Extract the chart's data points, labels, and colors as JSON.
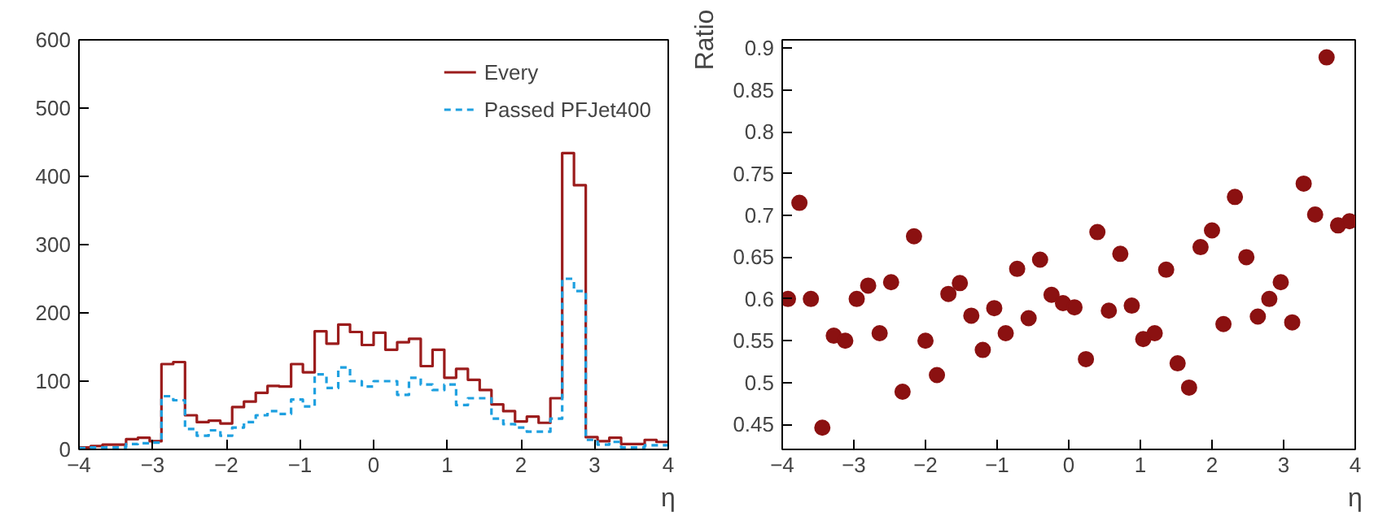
{
  "chart_data": [
    {
      "type": "histogram",
      "xlabel": "η",
      "xlim": [
        -4,
        4
      ],
      "ylim": [
        0,
        600
      ],
      "xticks": [
        -4,
        -3,
        -2,
        -1,
        0,
        1,
        2,
        3,
        4
      ],
      "yticks": [
        0,
        100,
        200,
        300,
        400,
        500,
        600
      ],
      "legend": "top right",
      "bins": [
        -4,
        -3.84,
        -3.68,
        -3.52,
        -3.36,
        -3.2,
        -3.04,
        -2.88,
        -2.72,
        -2.56,
        -2.4,
        -2.24,
        -2.08,
        -1.92,
        -1.76,
        -1.6,
        -1.44,
        -1.28,
        -1.12,
        -0.96,
        -0.8,
        -0.64,
        -0.48,
        -0.32,
        -0.16,
        0,
        0.16,
        0.32,
        0.48,
        0.64,
        0.8,
        0.96,
        1.12,
        1.28,
        1.44,
        1.6,
        1.76,
        1.92,
        2.08,
        2.24,
        2.4,
        2.56,
        2.72,
        2.88,
        3.04,
        3.2,
        3.36,
        3.52,
        3.68,
        3.84,
        4
      ],
      "series": [
        {
          "name": "Every",
          "color": "#9b1c1c",
          "line_style": "solid",
          "values": [
            3,
            5,
            7,
            7,
            15,
            17,
            12,
            125,
            128,
            50,
            40,
            42,
            38,
            62,
            70,
            83,
            93,
            92,
            125,
            113,
            173,
            155,
            183,
            172,
            153,
            171,
            146,
            157,
            162,
            122,
            146,
            105,
            118,
            102,
            87,
            66,
            56,
            41,
            48,
            39,
            75,
            434,
            387,
            18,
            12,
            17,
            8,
            8,
            14,
            11
          ]
        },
        {
          "name": "Passed PFJet400",
          "color": "#1ea0e0",
          "line_style": "dashed",
          "values": [
            2,
            3,
            3,
            3,
            8,
            9,
            10,
            78,
            72,
            30,
            20,
            28,
            20,
            32,
            40,
            50,
            56,
            52,
            73,
            63,
            110,
            90,
            120,
            100,
            92,
            100,
            100,
            80,
            105,
            95,
            87,
            95,
            65,
            75,
            75,
            45,
            37,
            32,
            26,
            26,
            45,
            250,
            232,
            14,
            7,
            11,
            3,
            3,
            6,
            6
          ]
        }
      ]
    },
    {
      "type": "scatter",
      "xlabel": "η",
      "ylabel": "Ratio",
      "marker": "circle",
      "color": "#8b1111",
      "xlim": [
        -4,
        4
      ],
      "ylim": [
        0.42,
        0.91
      ],
      "xticks": [
        -4,
        -3,
        -2,
        -1,
        0,
        1,
        2,
        3,
        4
      ],
      "yticks": [
        0.45,
        0.5,
        0.55,
        0.6,
        0.65,
        0.7,
        0.75,
        0.8,
        0.85,
        0.9
      ],
      "x": [
        -3.92,
        -3.76,
        -3.6,
        -3.44,
        -3.28,
        -3.12,
        -2.96,
        -2.8,
        -2.64,
        -2.48,
        -2.32,
        -2.16,
        -2.0,
        -1.84,
        -1.68,
        -1.52,
        -1.36,
        -1.2,
        -1.04,
        -0.88,
        -0.72,
        -0.56,
        -0.4,
        -0.24,
        -0.08,
        0.08,
        0.24,
        0.4,
        0.56,
        0.72,
        0.88,
        1.04,
        1.2,
        1.36,
        1.52,
        1.68,
        1.84,
        2.0,
        2.16,
        2.32,
        2.48,
        2.64,
        2.8,
        2.96,
        3.12,
        3.28,
        3.44,
        3.6,
        3.76,
        3.92
      ],
      "values": [
        0.6,
        0.715,
        0.6,
        0.446,
        0.556,
        0.55,
        0.6,
        0.616,
        0.559,
        0.62,
        0.489,
        0.675,
        0.55,
        0.509,
        0.606,
        0.619,
        0.58,
        0.539,
        0.589,
        0.559,
        0.636,
        0.577,
        0.647,
        0.605,
        0.595,
        0.59,
        0.528,
        0.68,
        0.586,
        0.654,
        0.592,
        0.552,
        0.559,
        0.635,
        0.523,
        0.494,
        0.662,
        0.682,
        0.57,
        0.722,
        0.65,
        0.579,
        0.6,
        0.62,
        0.572,
        0.738,
        0.701,
        0.889,
        0.688,
        0.693
      ]
    }
  ]
}
